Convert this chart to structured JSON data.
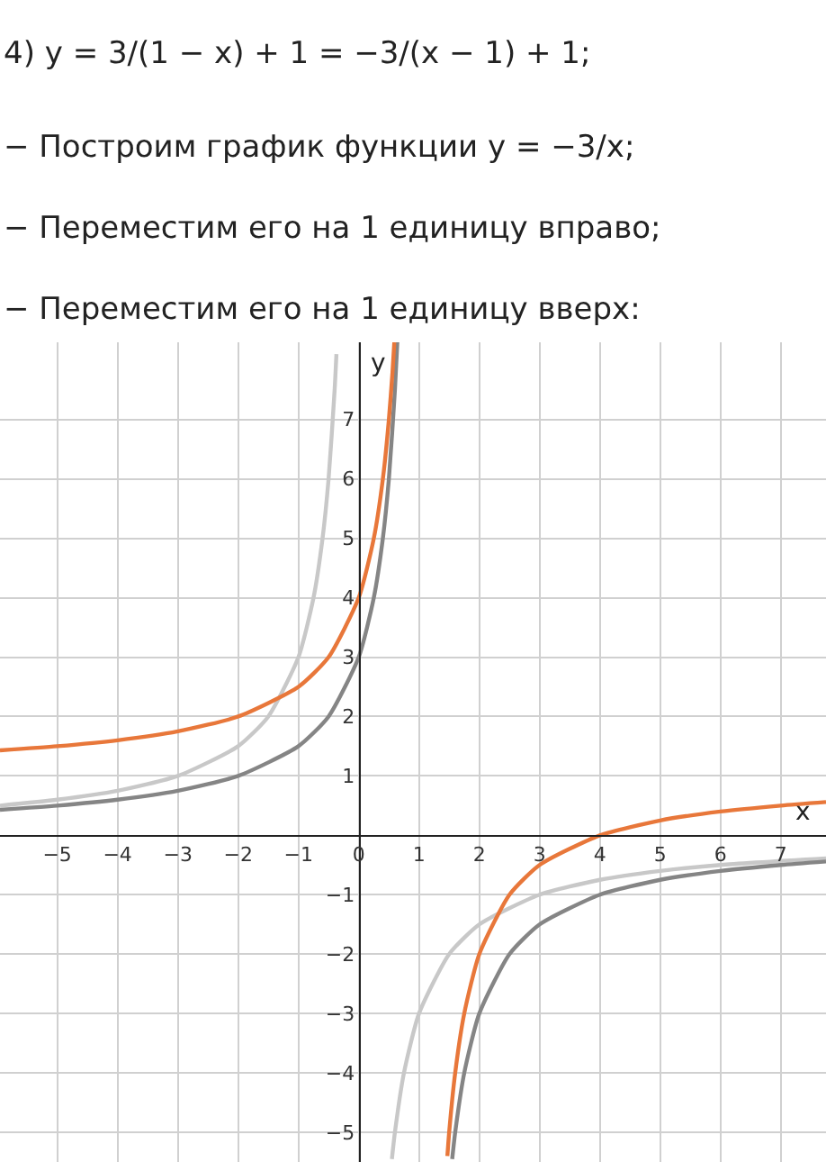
{
  "chart_data": {
    "type": "line",
    "title": "4) y = 3/(1 − x) + 1 = −3/(x − 1) + 1;",
    "annotations": [
      "− Построим график функции y = −3/x;",
      "− Переместим его на 1 единицу вправо;",
      "− Переместим его на 1 единицу вверх:"
    ],
    "xlabel": "x",
    "ylabel": "y",
    "series": [
      {
        "color": "#c8c8c8",
        "x": [
          -5.95,
          -5,
          -4,
          -3,
          -2,
          -1.5,
          -1,
          -0.75,
          -0.6,
          -0.5,
          -0.4,
          -0.37,
          null,
          0.55,
          0.6,
          0.75,
          1,
          1.5,
          2,
          3,
          4,
          5,
          6,
          7.75
        ],
        "values": [
          0.5,
          0.6,
          0.75,
          1,
          1.5,
          2,
          3,
          4,
          5,
          6,
          7.5,
          8.1,
          null,
          -5.45,
          -5,
          -4,
          -3,
          -2,
          -1.5,
          -1,
          -0.75,
          -0.6,
          -0.5,
          -0.39
        ]
      },
      {
        "color": "#858585",
        "x": [
          -5.95,
          -5,
          -4,
          -3,
          -2,
          -1,
          -0.5,
          0,
          0.25,
          0.4,
          0.5,
          0.6,
          0.64,
          null,
          1.55,
          1.6,
          1.75,
          2,
          2.5,
          3,
          4,
          5,
          6,
          7,
          7.75
        ],
        "values": [
          0.43,
          0.5,
          0.6,
          0.75,
          1,
          1.5,
          2,
          3,
          4,
          5,
          6,
          7.5,
          8.3,
          null,
          -5.45,
          -5,
          -4,
          -3,
          -2,
          -1.5,
          -1,
          -0.75,
          -0.6,
          -0.5,
          -0.44
        ]
      },
      {
        "color": "#e8773a",
        "x": [
          -5.95,
          -5,
          -4,
          -3,
          -2,
          -1,
          -0.5,
          0,
          0.25,
          0.4,
          0.5,
          0.56,
          0.59,
          null,
          1.47,
          1.5,
          1.6,
          1.75,
          2,
          2.5,
          3,
          4,
          5,
          6,
          7,
          7.75
        ],
        "values": [
          1.43,
          1.5,
          1.6,
          1.75,
          2,
          2.5,
          3,
          4,
          5,
          6,
          7,
          7.8,
          8.3,
          null,
          -5.4,
          -5,
          -4,
          -3,
          -2,
          -1,
          -0.5,
          0,
          0.25,
          0.4,
          0.5,
          0.56
        ]
      }
    ],
    "xlim": [
      -5.95,
      7.75
    ],
    "ylim": [
      -5.5,
      8.3
    ],
    "xticks": [
      -5,
      -4,
      -3,
      -2,
      -1,
      0,
      1,
      2,
      3,
      4,
      5,
      6,
      7
    ],
    "yticks": [
      -5,
      -4,
      -3,
      -2,
      -1,
      1,
      2,
      3,
      4,
      5,
      6,
      7
    ],
    "grid": true,
    "marker": "none",
    "line_style": "solid"
  }
}
